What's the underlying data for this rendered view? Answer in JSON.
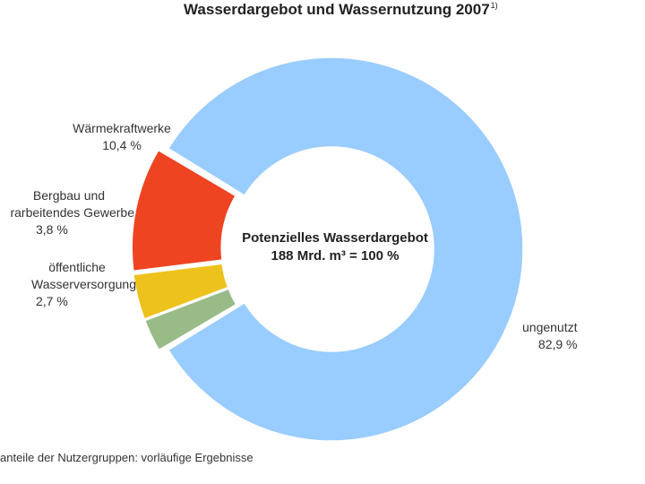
{
  "chart_data": {
    "type": "pie",
    "style": "donut",
    "title": "Wasserdargebot und Wassernutzung 2007",
    "title_footnote_marker": "1)",
    "center_label": [
      "Potenzielles Wasserdargebot",
      "188 Mrd. m³ = 100 %"
    ],
    "footnote": "anteile der Nutzergruppen: vorläufige Ergebnisse",
    "slices": [
      {
        "label_lines": [
          "ungenutzt"
        ],
        "value": 82.9,
        "value_text": "82,9 %",
        "color": "#99CCFF"
      },
      {
        "label_lines": [
          "öffentliche",
          "Wasserversorgung"
        ],
        "value": 2.7,
        "value_text": "2,7 %",
        "color": "#99BB88"
      },
      {
        "label_lines": [
          "Bergbau und",
          "rarbeitendes Gewerbe"
        ],
        "value": 3.8,
        "value_text": "3,8 %",
        "color": "#EEC21C"
      },
      {
        "label_lines": [
          "Wärmekraftwerke"
        ],
        "value": 10.4,
        "value_text": "10,4 %",
        "color": "#EE4422"
      }
    ],
    "legend": "none"
  }
}
